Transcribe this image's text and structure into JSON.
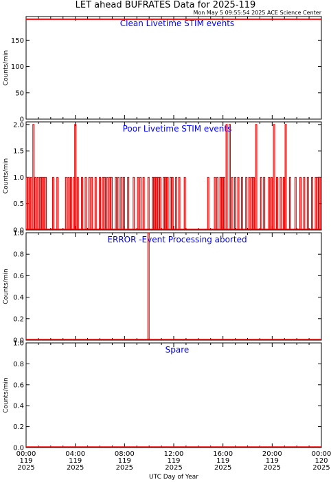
{
  "title": "LET ahead BUFRATES Data for 2025-119",
  "timestamp": "Mon May  5 09:55:54 2025 ACE Science Center",
  "xlabel": "UTC Day of Year",
  "line_color": "#ff0000",
  "label_color": "#0000ff",
  "x_ticks": [
    {
      "hour": 0,
      "time": "00:00",
      "doy": "119",
      "year": "2025"
    },
    {
      "hour": 4,
      "time": "04:00",
      "doy": "119",
      "year": "2025"
    },
    {
      "hour": 8,
      "time": "08:00",
      "doy": "119",
      "year": "2025"
    },
    {
      "hour": 12,
      "time": "12:00",
      "doy": "119",
      "year": "2025"
    },
    {
      "hour": 16,
      "time": "16:00",
      "doy": "119",
      "year": "2025"
    },
    {
      "hour": 20,
      "time": "20:00",
      "doy": "119",
      "year": "2025"
    },
    {
      "hour": 24,
      "time": "00:00",
      "doy": "120",
      "year": "2025"
    }
  ],
  "chart_data": [
    {
      "type": "line",
      "panel_label": "Clean Livetime STIM events",
      "ylabel": "Counts/min",
      "ylim": [
        0,
        195
      ],
      "yticks": [
        0,
        50,
        100,
        150
      ],
      "xlim_hours": [
        0,
        24
      ],
      "series": [
        {
          "x_hours": [
            0,
            24
          ],
          "values": [
            190,
            190
          ]
        }
      ]
    },
    {
      "type": "line",
      "panel_label": "Poor Livetime STIM events",
      "ylabel": "Counts/min",
      "ylim": [
        0,
        2.05
      ],
      "yticks": [
        0.0,
        0.5,
        1.0,
        1.5,
        2.0
      ],
      "ytick_labels": [
        "0.0",
        "0.5",
        "1.0",
        "1.5",
        "2.0"
      ],
      "xlim_hours": [
        0,
        24
      ],
      "baseline": 0,
      "series": [
        {
          "pulses": [
            {
              "t": 0.05,
              "v": 1
            },
            {
              "t": 0.2,
              "v": 1
            },
            {
              "t": 0.4,
              "v": 1
            },
            {
              "t": 0.6,
              "v": 2
            },
            {
              "t": 0.75,
              "v": 1
            },
            {
              "t": 0.95,
              "v": 1
            },
            {
              "t": 1.15,
              "v": 1
            },
            {
              "t": 1.3,
              "v": 1
            },
            {
              "t": 1.45,
              "v": 1
            },
            {
              "t": 1.6,
              "v": 1
            },
            {
              "t": 2.2,
              "v": 1
            },
            {
              "t": 2.55,
              "v": 1
            },
            {
              "t": 3.25,
              "v": 1
            },
            {
              "t": 3.45,
              "v": 1
            },
            {
              "t": 3.65,
              "v": 1
            },
            {
              "t": 3.9,
              "v": 1
            },
            {
              "t": 4.0,
              "v": 2
            },
            {
              "t": 4.2,
              "v": 1
            },
            {
              "t": 4.55,
              "v": 1
            },
            {
              "t": 4.85,
              "v": 1
            },
            {
              "t": 5.15,
              "v": 1
            },
            {
              "t": 5.35,
              "v": 1
            },
            {
              "t": 5.65,
              "v": 1
            },
            {
              "t": 6.0,
              "v": 1
            },
            {
              "t": 6.25,
              "v": 1
            },
            {
              "t": 6.4,
              "v": 1
            },
            {
              "t": 6.6,
              "v": 1
            },
            {
              "t": 6.8,
              "v": 1
            },
            {
              "t": 6.95,
              "v": 1
            },
            {
              "t": 7.3,
              "v": 1
            },
            {
              "t": 7.5,
              "v": 1
            },
            {
              "t": 7.75,
              "v": 1
            },
            {
              "t": 7.95,
              "v": 1
            },
            {
              "t": 8.3,
              "v": 1
            },
            {
              "t": 8.75,
              "v": 1
            },
            {
              "t": 9.1,
              "v": 1
            },
            {
              "t": 9.3,
              "v": 1
            },
            {
              "t": 9.55,
              "v": 1
            },
            {
              "t": 9.95,
              "v": 1
            },
            {
              "t": 10.3,
              "v": 1
            },
            {
              "t": 10.45,
              "v": 1
            },
            {
              "t": 10.6,
              "v": 1
            },
            {
              "t": 10.75,
              "v": 1
            },
            {
              "t": 10.9,
              "v": 1
            },
            {
              "t": 11.2,
              "v": 1
            },
            {
              "t": 11.35,
              "v": 1
            },
            {
              "t": 11.5,
              "v": 1
            },
            {
              "t": 11.75,
              "v": 1
            },
            {
              "t": 11.9,
              "v": 1
            },
            {
              "t": 12.2,
              "v": 1
            },
            {
              "t": 12.45,
              "v": 1
            },
            {
              "t": 12.9,
              "v": 1
            },
            {
              "t": 14.8,
              "v": 1
            },
            {
              "t": 15.35,
              "v": 1
            },
            {
              "t": 15.55,
              "v": 1
            },
            {
              "t": 15.8,
              "v": 1
            },
            {
              "t": 15.95,
              "v": 1
            },
            {
              "t": 16.1,
              "v": 1
            },
            {
              "t": 16.3,
              "v": 2
            },
            {
              "t": 16.55,
              "v": 2
            },
            {
              "t": 16.75,
              "v": 1
            },
            {
              "t": 17.0,
              "v": 1
            },
            {
              "t": 17.25,
              "v": 1
            },
            {
              "t": 17.55,
              "v": 1
            },
            {
              "t": 17.9,
              "v": 1
            },
            {
              "t": 18.15,
              "v": 1
            },
            {
              "t": 18.35,
              "v": 1
            },
            {
              "t": 18.5,
              "v": 1
            },
            {
              "t": 18.7,
              "v": 2
            },
            {
              "t": 19.1,
              "v": 1
            },
            {
              "t": 19.35,
              "v": 1
            },
            {
              "t": 19.75,
              "v": 1
            },
            {
              "t": 19.95,
              "v": 1
            },
            {
              "t": 20.15,
              "v": 2
            },
            {
              "t": 20.4,
              "v": 1
            },
            {
              "t": 20.7,
              "v": 1
            },
            {
              "t": 20.95,
              "v": 1
            },
            {
              "t": 21.1,
              "v": 2
            },
            {
              "t": 21.45,
              "v": 1
            },
            {
              "t": 21.9,
              "v": 1
            },
            {
              "t": 22.3,
              "v": 1
            },
            {
              "t": 22.6,
              "v": 1
            },
            {
              "t": 22.9,
              "v": 1
            },
            {
              "t": 23.25,
              "v": 1
            },
            {
              "t": 23.55,
              "v": 1
            },
            {
              "t": 23.7,
              "v": 1
            },
            {
              "t": 23.85,
              "v": 1
            }
          ]
        }
      ]
    },
    {
      "type": "line",
      "panel_label": "ERROR -Event Processing aborted",
      "ylabel": "Counts/min",
      "ylim": [
        0,
        1.0
      ],
      "yticks": [
        0.0,
        0.2,
        0.4,
        0.6,
        0.8,
        1.0
      ],
      "ytick_labels": [
        "0.0",
        "0.2",
        "0.4",
        "0.6",
        "0.8",
        "1.0"
      ],
      "xlim_hours": [
        0,
        24
      ],
      "baseline": 0,
      "series": [
        {
          "pulses": [
            {
              "t": 9.95,
              "v": 1
            }
          ]
        }
      ]
    },
    {
      "type": "line",
      "panel_label": "Spare",
      "ylabel": "Counts/min",
      "ylim": [
        0,
        1.0
      ],
      "yticks": [
        0.0,
        0.2,
        0.4,
        0.6,
        0.8,
        1.0
      ],
      "ytick_labels": [
        "0.0",
        "0.2",
        "0.4",
        "0.6",
        "0.8",
        "1.0"
      ],
      "xlim_hours": [
        0,
        24
      ],
      "baseline": 0,
      "series": [
        {
          "pulses": []
        }
      ]
    }
  ]
}
